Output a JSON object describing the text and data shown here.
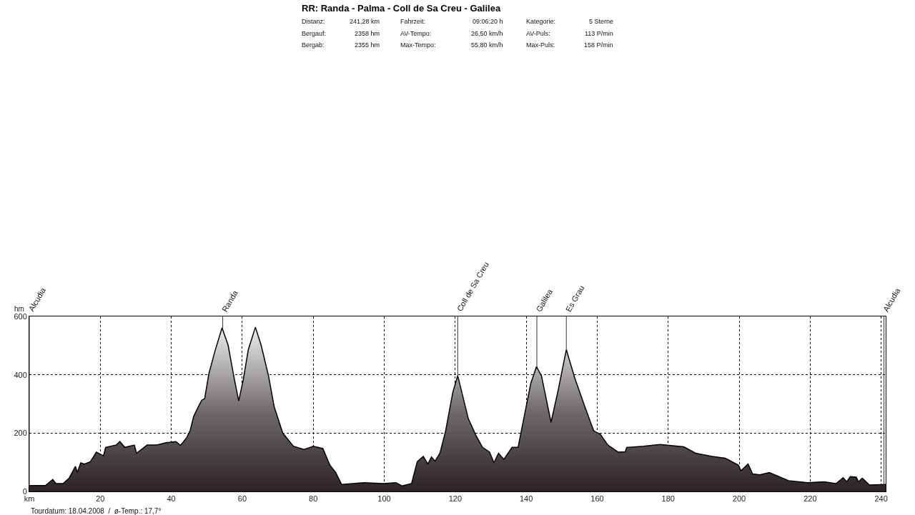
{
  "chart_data": {
    "type": "area",
    "title": "RR: Randa - Palma - Coll de Sa Creu - Galilea",
    "ylabel": "hm",
    "x": [
      0,
      4.5,
      5.2,
      6.6,
      7.5,
      9.5,
      11.2,
      13,
      13.5,
      14.5,
      15.5,
      17.2,
      18.9,
      20.9,
      21.5,
      24.5,
      25.5,
      26.9,
      29.6,
      30.2,
      33.2,
      35.9,
      38.6,
      41.3,
      42.6,
      44.3,
      45.3,
      46.3,
      47.6,
      48.6,
      49.4,
      50.6,
      52.3,
      54.3,
      56,
      57.6,
      59,
      60.3,
      61.7,
      63.7,
      65.3,
      67.4,
      69,
      71.4,
      74.4,
      77.4,
      79.1,
      80,
      82.7,
      84.7,
      86.3,
      88,
      94.3,
      99.7,
      103.3,
      105,
      107.7,
      109.3,
      111,
      112.3,
      113.3,
      114.3,
      115.7,
      117.3,
      119.3,
      120.7,
      123.7,
      126,
      127.7,
      129.7,
      130.9,
      132.2,
      133.7,
      136,
      137.7,
      139.3,
      141.3,
      142.9,
      144.3,
      147,
      149,
      151.3,
      153.7,
      156.3,
      159,
      160.9,
      163,
      165.9,
      167.9,
      168.3,
      173,
      177.7,
      184.4,
      187.7,
      192.4,
      196.1,
      199.8,
      200.5,
      202.5,
      203.8,
      205.8,
      208.5,
      213.9,
      219.3,
      223.9,
      227.3,
      229.3,
      230.3,
      231.3,
      233,
      233.6,
      234.7,
      236.7,
      241.28
    ],
    "series": [
      {
        "color": "#000000",
        "values": [
          20,
          20,
          27,
          41,
          27,
          27,
          45,
          86,
          65,
          98,
          94,
          102,
          135,
          122,
          151,
          159,
          171,
          151,
          159,
          131,
          159,
          159,
          167,
          171,
          158,
          184,
          208,
          257,
          290,
          313,
          318,
          404,
          481,
          561,
          502,
          396,
          310,
          384,
          486,
          563,
          502,
          396,
          290,
          200,
          155,
          144,
          151,
          155,
          147,
          90,
          65,
          24,
          30,
          27,
          30,
          19,
          27,
          102,
          120,
          94,
          118,
          104,
          131,
          208,
          339,
          397,
          249,
          188,
          151,
          135,
          98,
          131,
          110,
          151,
          151,
          249,
          371,
          428,
          396,
          237,
          347,
          486,
          388,
          298,
          208,
          196,
          159,
          135,
          136,
          151,
          155,
          161,
          153,
          131,
          120,
          114,
          90,
          71,
          94,
          60,
          57,
          65,
          37,
          30,
          33,
          27,
          47,
          33,
          51,
          49,
          33,
          45,
          22,
          24
        ]
      }
    ],
    "xlim": [
      0,
      241.28
    ],
    "ylim": [
      0,
      600
    ],
    "xticks": [
      {
        "value": 0,
        "label": "km"
      },
      20,
      40,
      60,
      80,
      100,
      120,
      140,
      160,
      180,
      200,
      220,
      240
    ],
    "yticks": [
      0,
      200,
      400,
      600
    ],
    "grid": true,
    "legend": false,
    "ref_lines": [
      {
        "axis": "x",
        "value": 0,
        "label": "Alcudia"
      },
      {
        "axis": "x",
        "value": 54.5,
        "label": "Randa"
      },
      {
        "axis": "x",
        "value": 120.7,
        "label": "Coll de Sa Creu"
      },
      {
        "axis": "x",
        "value": 143,
        "label": "Galilea"
      },
      {
        "axis": "x",
        "value": 151.3,
        "label": "Es Grau"
      },
      {
        "axis": "x",
        "value": 240.8,
        "label": "Alcudia"
      }
    ],
    "annotations": [
      "Distanz:",
      "241,28 km",
      "Fahrzeit:",
      "09:06:20 h",
      "Kategorie:",
      "5 Sterne",
      "Bergauf:",
      "2358 hm",
      "AV-Tempo:",
      "26,50 km/h",
      "AV-Puls:",
      "113 P/min",
      "Bergab:",
      "2355 hm",
      "Max-Tempo:",
      "55,80 km/h",
      "Max-Puls:",
      "158 P/min",
      "Tourdatum: 18.04.2008  /  ø-Temp.: 17,7°"
    ]
  }
}
